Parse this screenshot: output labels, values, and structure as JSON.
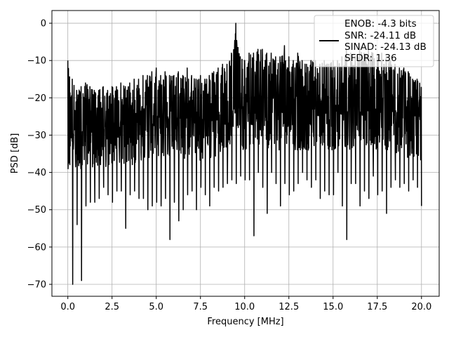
{
  "chart_data": {
    "type": "line",
    "title": "",
    "xlabel": "Frequency [MHz]",
    "ylabel": "PSD [dB]",
    "xlim": [
      -0.9,
      21.0
    ],
    "ylim": [
      -73.2,
      3.4
    ],
    "xticks": [
      0.0,
      2.5,
      5.0,
      7.5,
      10.0,
      12.5,
      15.0,
      17.5,
      20.0
    ],
    "xtick_labels": [
      "0.0",
      "2.5",
      "5.0",
      "7.5",
      "10.0",
      "12.5",
      "15.0",
      "17.5",
      "20.0"
    ],
    "yticks": [
      0,
      -10,
      -20,
      -30,
      -40,
      -50,
      -60,
      -70
    ],
    "ytick_labels": [
      "0",
      "−10",
      "−20",
      "−30",
      "−40",
      "−50",
      "−60",
      "−70"
    ],
    "grid": true,
    "legend_position": "top-right",
    "legend_lines": [
      "ENOB: -4.3 bits",
      "SNR: -24.11 dB",
      "SINAD: -24.13 dB",
      "SFDR: 1.36"
    ],
    "series_color": "#000000",
    "series": [
      {
        "x": [
          0.0,
          0.25,
          0.5,
          0.75,
          1.0,
          1.25,
          1.5,
          1.75,
          2.0,
          2.25,
          2.5,
          2.75,
          3.0,
          3.25,
          3.5,
          3.75,
          4.0,
          4.25,
          4.5,
          4.75,
          5.0,
          5.25,
          5.5,
          5.75,
          6.0,
          6.25,
          6.5,
          6.75,
          7.0,
          7.25,
          7.5,
          7.75,
          8.0,
          8.25,
          8.5,
          8.75,
          9.0,
          9.25,
          9.5,
          9.75,
          10.0,
          10.25,
          10.5,
          10.75,
          11.0,
          11.25,
          11.5,
          11.75,
          12.0,
          12.25,
          12.5,
          12.75,
          13.0,
          13.25,
          13.5,
          13.75,
          14.0,
          14.25,
          14.5,
          14.75,
          15.0,
          15.25,
          15.5,
          15.75,
          16.0,
          16.25,
          16.5,
          16.75,
          17.0,
          17.25,
          17.5,
          17.75,
          18.0,
          18.25,
          18.5,
          18.75,
          19.0,
          19.25,
          19.5,
          19.75,
          20.0
        ],
        "upper": [
          -10,
          -15,
          -18,
          -17,
          -16,
          -17,
          -18,
          -18,
          -17,
          -18,
          -17,
          -17,
          -16,
          -17,
          -16,
          -15,
          -15,
          -14,
          -14,
          -13,
          -12,
          -14,
          -13,
          -14,
          -14,
          -13,
          -14,
          -12,
          -14,
          -15,
          -14,
          -15,
          -14,
          -13,
          -12,
          -11,
          -11,
          -8,
          0,
          -9,
          -10,
          -8,
          -8,
          -7,
          -7,
          -8,
          -8,
          -9,
          -9,
          -6,
          -9,
          -10,
          -8,
          -10,
          -11,
          -10,
          -10,
          -11,
          -10,
          -11,
          -10,
          -10,
          -9,
          -7,
          -8,
          -9,
          -7,
          -8,
          -7,
          -8,
          -9,
          -8,
          -9,
          -10,
          -11,
          -12,
          -12,
          -13,
          -15,
          -15,
          -16
        ],
        "lower": [
          -37,
          -70,
          -54,
          -69,
          -49,
          -48,
          -48,
          -47,
          -44,
          -46,
          -48,
          -45,
          -45,
          -55,
          -46,
          -45,
          -47,
          -47,
          -50,
          -49,
          -48,
          -49,
          -47,
          -58,
          -48,
          -53,
          -50,
          -46,
          -45,
          -50,
          -44,
          -46,
          -49,
          -44,
          -45,
          -44,
          -43,
          -42,
          -43,
          -41,
          -42,
          -42,
          -57,
          -40,
          -44,
          -51,
          -40,
          -43,
          -49,
          -43,
          -46,
          -45,
          -43,
          -40,
          -42,
          -44,
          -42,
          -47,
          -45,
          -46,
          -46,
          -40,
          -49,
          -58,
          -43,
          -43,
          -49,
          -45,
          -47,
          -41,
          -46,
          -45,
          -51,
          -44,
          -42,
          -44,
          -43,
          -45,
          -42,
          -44,
          -49
        ],
        "mid": [
          -27,
          -28,
          -28,
          -27,
          -26,
          -26,
          -27,
          -27,
          -26,
          -27,
          -26,
          -26,
          -26,
          -27,
          -26,
          -26,
          -25,
          -25,
          -25,
          -24,
          -24,
          -25,
          -24,
          -24,
          -25,
          -24,
          -25,
          -24,
          -25,
          -25,
          -25,
          -25,
          -25,
          -24,
          -24,
          -23,
          -23,
          -22,
          -22,
          -22,
          -22,
          -22,
          -22,
          -21,
          -21,
          -22,
          -22,
          -22,
          -22,
          -21,
          -22,
          -22,
          -22,
          -22,
          -22,
          -22,
          -22,
          -22,
          -22,
          -22,
          -22,
          -22,
          -22,
          -22,
          -22,
          -22,
          -21,
          -22,
          -21,
          -22,
          -22,
          -22,
          -22,
          -22,
          -23,
          -23,
          -24,
          -24,
          -25,
          -25,
          -26
        ]
      }
    ]
  }
}
